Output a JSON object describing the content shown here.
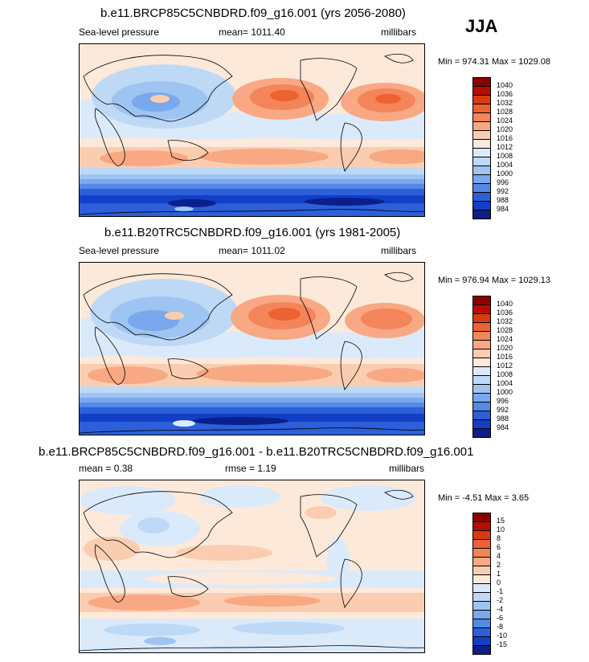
{
  "season": "JJA",
  "panels": [
    {
      "title": "b.e11.BRCP85C5CNBDRD.f09_g16.001 (yrs 2056-2080)",
      "left_label": "Sea-level pressure",
      "center_label": "mean= 1011.40",
      "right_label": "millibars",
      "minmax": "Min = 974.31 Max = 1029.08",
      "colorbar": {
        "labels": [
          "1040",
          "1036",
          "1032",
          "1028",
          "1024",
          "1020",
          "1016",
          "1012",
          "1008",
          "1004",
          "1000",
          "996",
          "992",
          "988",
          "984"
        ],
        "colors": [
          "#8a0000",
          "#b80c00",
          "#d93a10",
          "#ec6232",
          "#f4845a",
          "#f8a883",
          "#fbcdb0",
          "#fde9da",
          "#dbeafb",
          "#bed9f6",
          "#9ec4f1",
          "#7aa8ec",
          "#5489e6",
          "#2c5fd9",
          "#133ec6",
          "#0a1f8c"
        ]
      }
    },
    {
      "title": "b.e11.B20TRC5CNBDRD.f09_g16.001 (yrs 1981-2005)",
      "left_label": "Sea-level pressure",
      "center_label": "mean= 1011.02",
      "right_label": "millibars",
      "minmax": "Min = 976.94 Max = 1029.13",
      "colorbar": {
        "labels": [
          "1040",
          "1036",
          "1032",
          "1028",
          "1024",
          "1020",
          "1016",
          "1012",
          "1008",
          "1004",
          "1000",
          "996",
          "992",
          "988",
          "984"
        ],
        "colors": [
          "#8a0000",
          "#b80c00",
          "#d93a10",
          "#ec6232",
          "#f4845a",
          "#f8a883",
          "#fbcdb0",
          "#fde9da",
          "#dbeafb",
          "#bed9f6",
          "#9ec4f1",
          "#7aa8ec",
          "#5489e6",
          "#2c5fd9",
          "#133ec6",
          "#0a1f8c"
        ]
      }
    },
    {
      "title": "b.e11.BRCP85C5CNBDRD.f09_g16.001 - b.e11.B20TRC5CNBDRD.f09_g16.001",
      "left_label": "mean =   0.38",
      "center_label": "rmse =   1.19",
      "right_label": "millibars",
      "minmax": "Min =  -4.51 Max =   3.65",
      "colorbar": {
        "labels": [
          "15",
          "10",
          "8",
          "6",
          "4",
          "2",
          "1",
          "0",
          "-1",
          "-2",
          "-4",
          "-6",
          "-8",
          "-10",
          "-15"
        ],
        "colors": [
          "#8a0000",
          "#b80c00",
          "#d93a10",
          "#ec6232",
          "#f4845a",
          "#f8a883",
          "#fbcdb0",
          "#fde9da",
          "#dbeafb",
          "#bed9f6",
          "#9ec4f1",
          "#7aa8ec",
          "#5489e6",
          "#2c5fd9",
          "#133ec6",
          "#0a1f8c"
        ]
      }
    }
  ]
}
